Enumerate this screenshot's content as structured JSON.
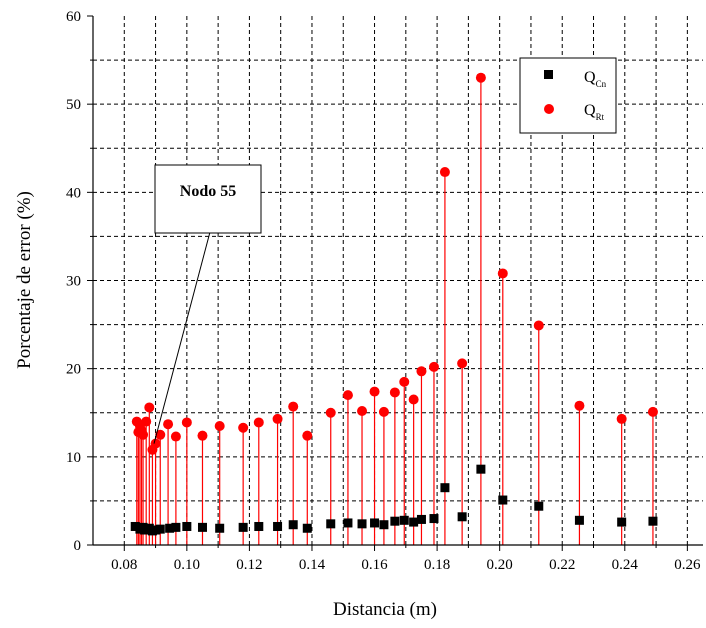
{
  "chart_data": {
    "type": "scatter",
    "xlabel": "Distancia (m)",
    "ylabel": "Porcentaje de error (%)",
    "xlim": [
      0.07,
      0.265
    ],
    "ylim": [
      0,
      60
    ],
    "x_ticks": [
      0.08,
      0.1,
      0.12,
      0.14,
      0.16,
      0.18,
      0.2,
      0.22,
      0.24,
      0.26
    ],
    "x_tick_labels": [
      "0.08",
      "0.10",
      "0.12",
      "0.14",
      "0.16",
      "0.18",
      "0.20",
      "0.22",
      "0.24",
      "0.26"
    ],
    "y_ticks": [
      0,
      10,
      20,
      30,
      40,
      50,
      60
    ],
    "y_tick_labels": [
      "0",
      "10",
      "20",
      "30",
      "40",
      "50",
      "60"
    ],
    "grid": "dashed",
    "legend_position": "top-right",
    "series": [
      {
        "name": "Q",
        "name_subscript": "Cn",
        "marker": "square",
        "color": "#000000",
        "stems": false,
        "points": [
          {
            "x": 0.0835,
            "y": 2.1
          },
          {
            "x": 0.085,
            "y": 1.8
          },
          {
            "x": 0.0855,
            "y": 1.9
          },
          {
            "x": 0.086,
            "y": 2.0
          },
          {
            "x": 0.0865,
            "y": 1.7
          },
          {
            "x": 0.088,
            "y": 1.9
          },
          {
            "x": 0.089,
            "y": 1.6
          },
          {
            "x": 0.09,
            "y": 1.7
          },
          {
            "x": 0.0915,
            "y": 1.8
          },
          {
            "x": 0.0945,
            "y": 1.9
          },
          {
            "x": 0.0965,
            "y": 2.0
          },
          {
            "x": 0.1,
            "y": 2.1
          },
          {
            "x": 0.105,
            "y": 2.0
          },
          {
            "x": 0.1105,
            "y": 1.9
          },
          {
            "x": 0.118,
            "y": 2.0
          },
          {
            "x": 0.123,
            "y": 2.1
          },
          {
            "x": 0.129,
            "y": 2.1
          },
          {
            "x": 0.134,
            "y": 2.3
          },
          {
            "x": 0.1385,
            "y": 1.9
          },
          {
            "x": 0.146,
            "y": 2.4
          },
          {
            "x": 0.1515,
            "y": 2.5
          },
          {
            "x": 0.156,
            "y": 2.4
          },
          {
            "x": 0.16,
            "y": 2.5
          },
          {
            "x": 0.163,
            "y": 2.3
          },
          {
            "x": 0.1665,
            "y": 2.7
          },
          {
            "x": 0.1695,
            "y": 2.8
          },
          {
            "x": 0.1725,
            "y": 2.6
          },
          {
            "x": 0.175,
            "y": 2.9
          },
          {
            "x": 0.179,
            "y": 3.0
          },
          {
            "x": 0.1825,
            "y": 6.5
          },
          {
            "x": 0.188,
            "y": 3.2
          },
          {
            "x": 0.194,
            "y": 8.6
          },
          {
            "x": 0.201,
            "y": 5.1
          },
          {
            "x": 0.2125,
            "y": 4.4
          },
          {
            "x": 0.2255,
            "y": 2.8
          },
          {
            "x": 0.239,
            "y": 2.6
          },
          {
            "x": 0.249,
            "y": 2.7
          }
        ]
      },
      {
        "name": "Q",
        "name_subscript": "Rt",
        "marker": "circle",
        "color": "#ff0000",
        "stems": true,
        "points": [
          {
            "x": 0.084,
            "y": 14.0
          },
          {
            "x": 0.0845,
            "y": 12.8
          },
          {
            "x": 0.085,
            "y": 13.5
          },
          {
            "x": 0.0855,
            "y": 13.0
          },
          {
            "x": 0.086,
            "y": 12.5
          },
          {
            "x": 0.087,
            "y": 14.0
          },
          {
            "x": 0.088,
            "y": 15.6
          },
          {
            "x": 0.089,
            "y": 10.8
          },
          {
            "x": 0.09,
            "y": 11.5
          },
          {
            "x": 0.0915,
            "y": 12.5
          },
          {
            "x": 0.094,
            "y": 13.7
          },
          {
            "x": 0.0965,
            "y": 12.3
          },
          {
            "x": 0.1,
            "y": 13.9
          },
          {
            "x": 0.105,
            "y": 12.4
          },
          {
            "x": 0.1105,
            "y": 13.5
          },
          {
            "x": 0.118,
            "y": 13.3
          },
          {
            "x": 0.123,
            "y": 13.9
          },
          {
            "x": 0.129,
            "y": 14.3
          },
          {
            "x": 0.134,
            "y": 15.7
          },
          {
            "x": 0.1385,
            "y": 12.4
          },
          {
            "x": 0.146,
            "y": 15.0
          },
          {
            "x": 0.1515,
            "y": 17.0
          },
          {
            "x": 0.156,
            "y": 15.2
          },
          {
            "x": 0.16,
            "y": 17.4
          },
          {
            "x": 0.163,
            "y": 15.1
          },
          {
            "x": 0.1665,
            "y": 17.3
          },
          {
            "x": 0.1695,
            "y": 18.5
          },
          {
            "x": 0.1725,
            "y": 16.5
          },
          {
            "x": 0.175,
            "y": 19.7
          },
          {
            "x": 0.179,
            "y": 20.2
          },
          {
            "x": 0.1825,
            "y": 42.3
          },
          {
            "x": 0.188,
            "y": 20.6
          },
          {
            "x": 0.194,
            "y": 53.0
          },
          {
            "x": 0.201,
            "y": 30.8
          },
          {
            "x": 0.2125,
            "y": 24.9
          },
          {
            "x": 0.2255,
            "y": 15.8
          },
          {
            "x": 0.239,
            "y": 14.3
          },
          {
            "x": 0.249,
            "y": 15.1
          }
        ]
      }
    ],
    "annotations": [
      {
        "text": "Nodo 55",
        "target": {
          "x": 0.0895,
          "y": 11.5
        }
      }
    ]
  }
}
